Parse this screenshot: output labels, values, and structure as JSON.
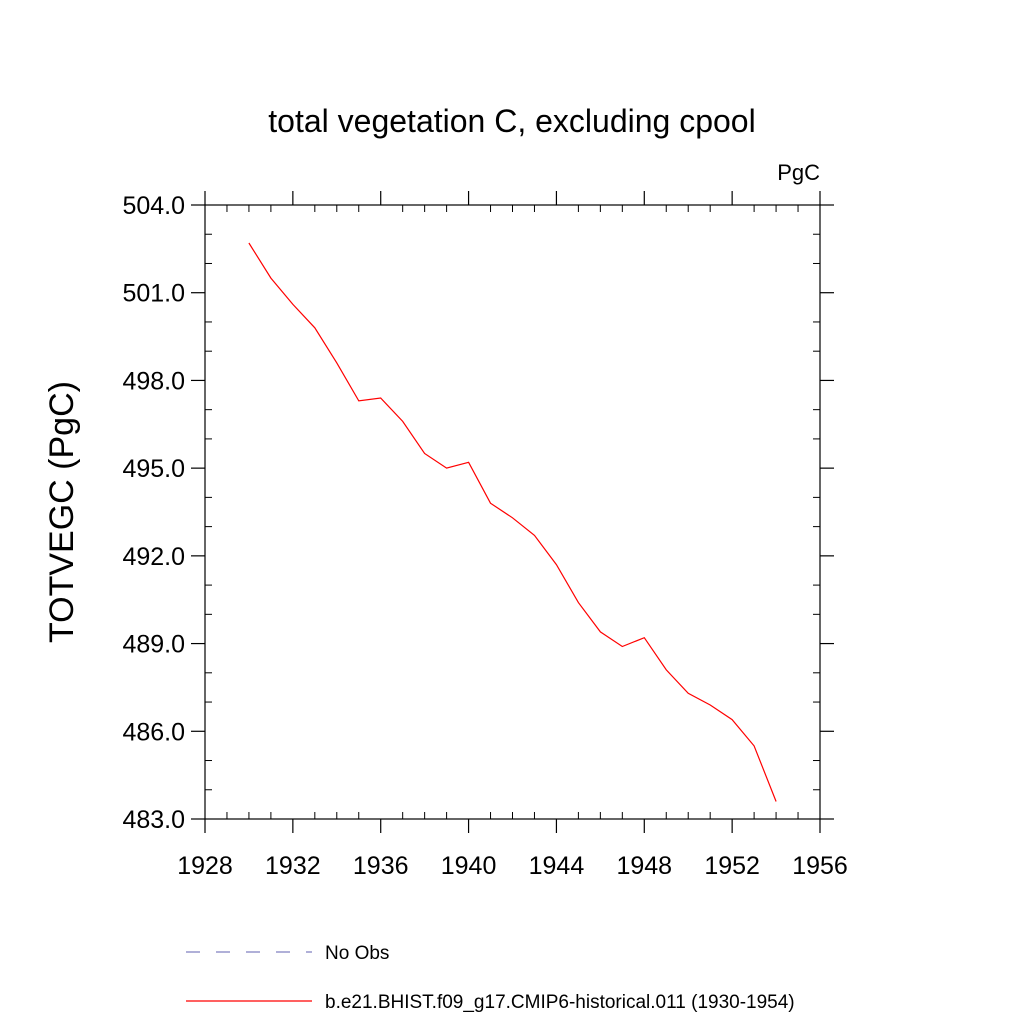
{
  "chart_data": {
    "type": "line",
    "title": "total vegetation C, excluding cpool",
    "units": "PgC",
    "ylabel": "TOTVEGC  (PgC)",
    "xlabel": "",
    "xlim": [
      1928,
      1956
    ],
    "ylim": [
      483.0,
      504.0
    ],
    "x_ticks": [
      "1928",
      "1932",
      "1936",
      "1940",
      "1944",
      "1948",
      "1952",
      "1956"
    ],
    "y_ticks": [
      "483.0",
      "486.0",
      "489.0",
      "492.0",
      "495.0",
      "498.0",
      "501.0",
      "504.0"
    ],
    "grid": false,
    "legend_placement": "bottom",
    "series": [
      {
        "name": "No Obs",
        "color": "#8080c0",
        "style": "dashed",
        "x": [],
        "y": []
      },
      {
        "name": "b.e21.BHIST.f09_g17.CMIP6-historical.011 (1930-1954)",
        "color": "#ff0000",
        "style": "solid",
        "x": [
          1930,
          1931,
          1932,
          1933,
          1934,
          1935,
          1936,
          1937,
          1938,
          1939,
          1940,
          1941,
          1942,
          1943,
          1944,
          1945,
          1946,
          1947,
          1948,
          1949,
          1950,
          1951,
          1952,
          1953,
          1954
        ],
        "y": [
          502.7,
          501.5,
          500.6,
          499.8,
          498.6,
          497.3,
          497.4,
          496.6,
          495.5,
          495.0,
          495.2,
          493.8,
          493.3,
          492.7,
          491.7,
          490.4,
          489.4,
          488.9,
          489.2,
          488.1,
          487.3,
          486.9,
          486.4,
          485.5,
          483.6
        ]
      }
    ]
  }
}
